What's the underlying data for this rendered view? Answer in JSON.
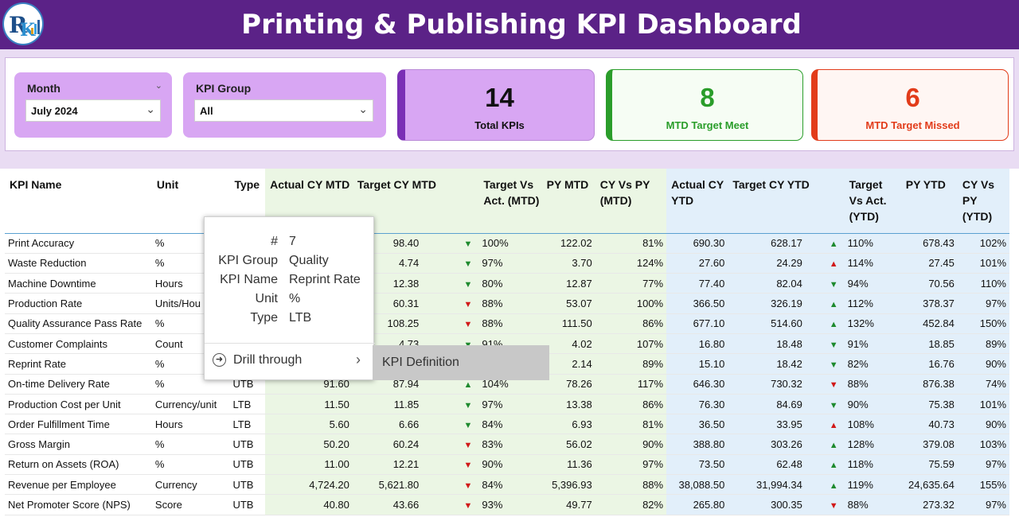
{
  "header": {
    "title": "Printing & Publishing KPI Dashboard",
    "logo_icon": "rk-logo-icon"
  },
  "filters": {
    "month": {
      "label": "Month",
      "value": "July 2024"
    },
    "kpi_group": {
      "label": "KPI Group",
      "value": "All"
    }
  },
  "cards": {
    "total": {
      "value": "14",
      "caption": "Total KPIs",
      "color": "#d8a6f3",
      "accent": "#7a2fb5"
    },
    "meet": {
      "value": "8",
      "caption": "MTD Target Meet",
      "color": "#2a9d2a"
    },
    "missed": {
      "value": "6",
      "caption": "MTD Target Missed",
      "color": "#e23c1a"
    }
  },
  "table": {
    "headers": {
      "name": "KPI Name",
      "unit": "Unit",
      "type": "Type",
      "actual_mtd": "Actual CY MTD",
      "target_mtd": "Target CY MTD",
      "tva_mtd": "Target Vs Act. (MTD)",
      "py_mtd": "PY MTD",
      "cyvspy_mtd": "CY Vs PY (MTD)",
      "actual_ytd": "Actual CY YTD",
      "target_ytd": "Target CY YTD",
      "tva_ytd": "Target Vs Act. (YTD)",
      "py_ytd": "PY YTD",
      "cyvspy_ytd": "CY Vs PY (YTD)"
    },
    "rows": [
      {
        "name": "Print Accuracy",
        "unit": "%",
        "type": "",
        "actual_mtd": "",
        "target_mtd": "98.40",
        "mtd_icon": "down-green",
        "tva_mtd": "100%",
        "py_mtd": "122.02",
        "cyvspy_mtd": "81%",
        "actual_ytd": "690.30",
        "target_ytd": "628.17",
        "ytd_icon": "up-green",
        "tva_ytd": "110%",
        "py_ytd": "678.43",
        "cyvspy_ytd": "102%"
      },
      {
        "name": "Waste Reduction",
        "unit": "%",
        "type": "",
        "actual_mtd": "",
        "target_mtd": "4.74",
        "mtd_icon": "down-green",
        "tva_mtd": "97%",
        "py_mtd": "3.70",
        "cyvspy_mtd": "124%",
        "actual_ytd": "27.60",
        "target_ytd": "24.29",
        "ytd_icon": "up-red",
        "tva_ytd": "114%",
        "py_ytd": "27.45",
        "cyvspy_ytd": "101%"
      },
      {
        "name": "Machine Downtime",
        "unit": "Hours",
        "type": "",
        "actual_mtd": "",
        "target_mtd": "12.38",
        "mtd_icon": "down-green",
        "tva_mtd": "80%",
        "py_mtd": "12.87",
        "cyvspy_mtd": "77%",
        "actual_ytd": "77.40",
        "target_ytd": "82.04",
        "ytd_icon": "down-green",
        "tva_ytd": "94%",
        "py_ytd": "70.56",
        "cyvspy_ytd": "110%"
      },
      {
        "name": "Production Rate",
        "unit": "Units/Hou",
        "type": "",
        "actual_mtd": "",
        "target_mtd": "60.31",
        "mtd_icon": "down-red",
        "tva_mtd": "88%",
        "py_mtd": "53.07",
        "cyvspy_mtd": "100%",
        "actual_ytd": "366.50",
        "target_ytd": "326.19",
        "ytd_icon": "up-green",
        "tva_ytd": "112%",
        "py_ytd": "378.37",
        "cyvspy_ytd": "97%"
      },
      {
        "name": "Quality Assurance Pass Rate",
        "unit": "%",
        "type": "",
        "actual_mtd": "",
        "target_mtd": "108.25",
        "mtd_icon": "down-red",
        "tva_mtd": "88%",
        "py_mtd": "111.50",
        "cyvspy_mtd": "86%",
        "actual_ytd": "677.10",
        "target_ytd": "514.60",
        "ytd_icon": "up-green",
        "tva_ytd": "132%",
        "py_ytd": "452.84",
        "cyvspy_ytd": "150%"
      },
      {
        "name": "Customer Complaints",
        "unit": "Count",
        "type": "",
        "actual_mtd": "",
        "target_mtd": "4.73",
        "mtd_icon": "down-green",
        "tva_mtd": "91%",
        "py_mtd": "4.02",
        "cyvspy_mtd": "107%",
        "actual_ytd": "16.80",
        "target_ytd": "18.48",
        "ytd_icon": "down-green",
        "tva_ytd": "91%",
        "py_ytd": "18.85",
        "cyvspy_ytd": "89%"
      },
      {
        "name": "Reprint Rate",
        "unit": "%",
        "type": "",
        "actual_mtd": "",
        "target_mtd": "",
        "mtd_icon": "",
        "tva_mtd": "",
        "py_mtd": "2.14",
        "cyvspy_mtd": "89%",
        "actual_ytd": "15.10",
        "target_ytd": "18.42",
        "ytd_icon": "down-green",
        "tva_ytd": "82%",
        "py_ytd": "16.76",
        "cyvspy_ytd": "90%"
      },
      {
        "name": "On-time Delivery Rate",
        "unit": "%",
        "type": "UTB",
        "actual_mtd": "91.60",
        "target_mtd": "87.94",
        "mtd_icon": "up-green",
        "tva_mtd": "104%",
        "py_mtd": "78.26",
        "cyvspy_mtd": "117%",
        "actual_ytd": "646.30",
        "target_ytd": "730.32",
        "ytd_icon": "down-red",
        "tva_ytd": "88%",
        "py_ytd": "876.38",
        "cyvspy_ytd": "74%"
      },
      {
        "name": "Production Cost per Unit",
        "unit": "Currency/unit",
        "type": "LTB",
        "actual_mtd": "11.50",
        "target_mtd": "11.85",
        "mtd_icon": "down-green",
        "tva_mtd": "97%",
        "py_mtd": "13.38",
        "cyvspy_mtd": "86%",
        "actual_ytd": "76.30",
        "target_ytd": "84.69",
        "ytd_icon": "down-green",
        "tva_ytd": "90%",
        "py_ytd": "75.38",
        "cyvspy_ytd": "101%"
      },
      {
        "name": "Order Fulfillment Time",
        "unit": "Hours",
        "type": "LTB",
        "actual_mtd": "5.60",
        "target_mtd": "6.66",
        "mtd_icon": "down-green",
        "tva_mtd": "84%",
        "py_mtd": "6.93",
        "cyvspy_mtd": "81%",
        "actual_ytd": "36.50",
        "target_ytd": "33.95",
        "ytd_icon": "up-red",
        "tva_ytd": "108%",
        "py_ytd": "40.73",
        "cyvspy_ytd": "90%"
      },
      {
        "name": "Gross Margin",
        "unit": "%",
        "type": "UTB",
        "actual_mtd": "50.20",
        "target_mtd": "60.24",
        "mtd_icon": "down-red",
        "tva_mtd": "83%",
        "py_mtd": "56.02",
        "cyvspy_mtd": "90%",
        "actual_ytd": "388.80",
        "target_ytd": "303.26",
        "ytd_icon": "up-green",
        "tva_ytd": "128%",
        "py_ytd": "379.08",
        "cyvspy_ytd": "103%"
      },
      {
        "name": "Return on Assets (ROA)",
        "unit": "%",
        "type": "UTB",
        "actual_mtd": "11.00",
        "target_mtd": "12.21",
        "mtd_icon": "down-red",
        "tva_mtd": "90%",
        "py_mtd": "11.36",
        "cyvspy_mtd": "97%",
        "actual_ytd": "73.50",
        "target_ytd": "62.48",
        "ytd_icon": "up-green",
        "tva_ytd": "118%",
        "py_ytd": "75.59",
        "cyvspy_ytd": "97%"
      },
      {
        "name": "Revenue per Employee",
        "unit": "Currency",
        "type": "UTB",
        "actual_mtd": "4,724.20",
        "target_mtd": "5,621.80",
        "mtd_icon": "down-red",
        "tva_mtd": "84%",
        "py_mtd": "5,396.93",
        "cyvspy_mtd": "88%",
        "actual_ytd": "38,088.50",
        "target_ytd": "31,994.34",
        "ytd_icon": "up-green",
        "tva_ytd": "119%",
        "py_ytd": "24,635.64",
        "cyvspy_ytd": "155%"
      },
      {
        "name": "Net Promoter Score (NPS)",
        "unit": "Score",
        "type": "UTB",
        "actual_mtd": "40.80",
        "target_mtd": "43.66",
        "mtd_icon": "down-red",
        "tva_mtd": "93%",
        "py_mtd": "49.77",
        "cyvspy_mtd": "82%",
        "actual_ytd": "265.80",
        "target_ytd": "300.35",
        "ytd_icon": "down-red",
        "tva_ytd": "88%",
        "py_ytd": "273.32",
        "cyvspy_ytd": "97%"
      }
    ]
  },
  "tooltip": {
    "fields": [
      {
        "key": "#",
        "value": "7"
      },
      {
        "key": "KPI Group",
        "value": "Quality"
      },
      {
        "key": "KPI Name",
        "value": "Reprint Rate"
      },
      {
        "key": "Unit",
        "value": "%"
      },
      {
        "key": "Type",
        "value": "LTB"
      }
    ],
    "drill_label": "Drill through",
    "submenu_item": "KPI Definition"
  }
}
